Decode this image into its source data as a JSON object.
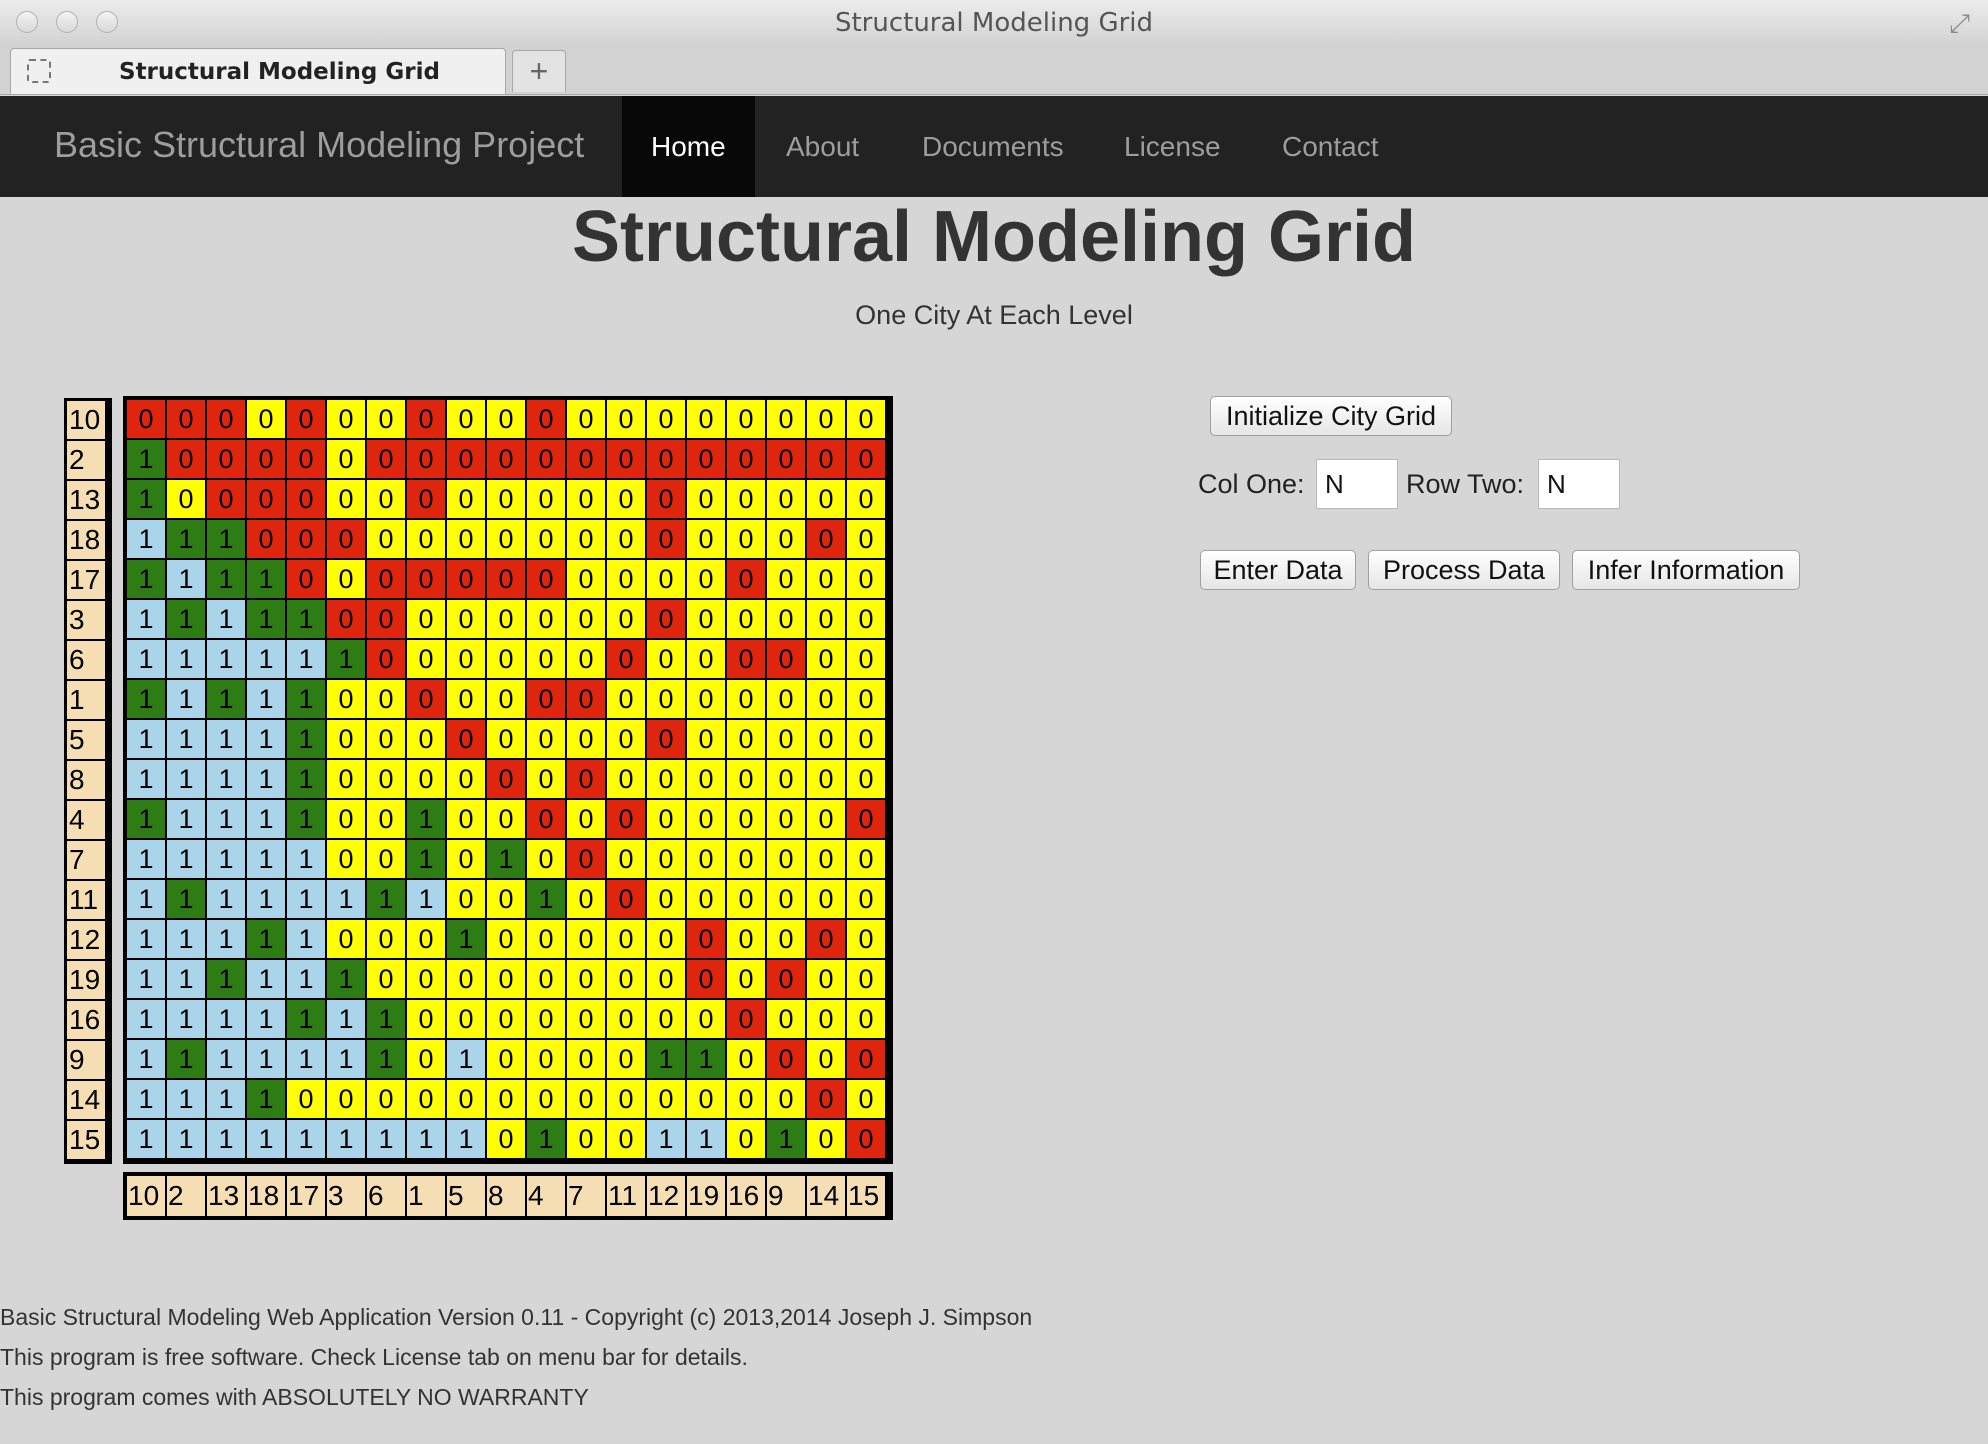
{
  "window": {
    "title": "Structural Modeling Grid"
  },
  "tab": {
    "label": "Structural Modeling Grid",
    "new_tab_symbol": "+"
  },
  "navbar": {
    "brand": "Basic Structural Modeling Project",
    "items": [
      "Home",
      "About",
      "Documents",
      "License",
      "Contact"
    ],
    "active": "Home"
  },
  "page": {
    "title": "Structural Modeling Grid",
    "subtitle": "One City At Each Level"
  },
  "grid": {
    "row_labels": [
      "10",
      "2",
      "13",
      "18",
      "17",
      "3",
      "6",
      "1",
      "5",
      "8",
      "4",
      "7",
      "11",
      "12",
      "19",
      "16",
      "9",
      "14",
      "15"
    ],
    "col_labels": [
      "10",
      "2",
      "13",
      "18",
      "17",
      "3",
      "6",
      "1",
      "5",
      "8",
      "4",
      "7",
      "11",
      "12",
      "19",
      "16",
      "9",
      "14",
      "15"
    ],
    "cell_codes": [
      "rrryryyryyryyyyyyyy",
      "Grrrryrrrrrrrrrrrrr",
      "Gyrrryyryyyyyryyyyy",
      "BGGrrryyyyyyyryyyry",
      "GBGGryrrrrryyyyryyy",
      "BGBGGrryyyyyyryyyyy",
      "BBBBBGryyyyyryyrryy",
      "GBGBGyyryyrryyyyyyy",
      "BBBBGyyyryyyyryyyyy",
      "BBBBGyyyyryryyyyyyy",
      "GBBBGyyGyyryryyyyyr",
      "BBBBByyGyGyryyyyyyy",
      "BGBBBBGByyGyryyyyyy",
      "BBBGByyyGyyyyyryyry",
      "BBGBBGyyyyyyyyryryy",
      "BBBBGBGyyyyyyyyryyy",
      "BGBBBBGyByyyyGGyryr",
      "BBBGyyyyyyyyyyyyyry",
      "BBBBBBBBByGyyBByGyr"
    ]
  },
  "controls": {
    "init_button": "Initialize City Grid",
    "col_one_label": "Col One:",
    "col_one_value": "N",
    "row_two_label": "Row Two:",
    "row_two_value": "N",
    "enter_button": "Enter Data",
    "process_button": "Process Data",
    "infer_button": "Infer Information"
  },
  "footer": {
    "line1": "Basic Structural Modeling Web Application Version 0.11 - Copyright (c) 2013,2014 Joseph J. Simpson",
    "line2": "This program is free software. Check License tab on menu bar for details.",
    "line3": "This program comes with ABSOLUTELY NO WARRANTY"
  },
  "colors": {
    "zero_yellow": "#ffff00",
    "zero_red": "#e0250f",
    "one_blue": "#a9d4ea",
    "one_green": "#2e7d14",
    "label_bg": "#f5deb3",
    "navbar": "#222222"
  }
}
